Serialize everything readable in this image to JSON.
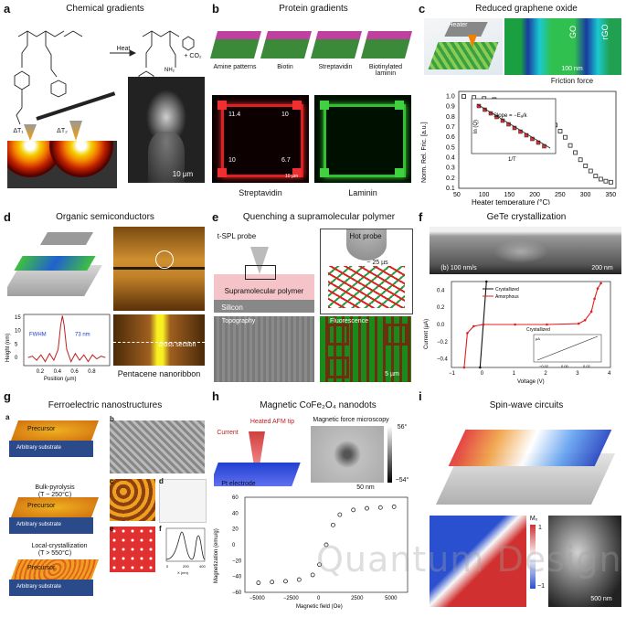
{
  "panels": {
    "a": {
      "label": "a",
      "title": "Chemical gradients",
      "heat": "Heat",
      "co2": "+ CO₂",
      "dt1": "ΔT₁",
      "dt2": "ΔT₂",
      "scale": "10 µm"
    },
    "b": {
      "label": "b",
      "title": "Protein gradients",
      "steps": [
        "Amine patterns",
        "Biotin",
        "Streptavidin",
        "Biotinylated laminin"
      ],
      "vals": [
        "11.4",
        "10",
        "10",
        "6.7"
      ],
      "scale": "10 µm",
      "cap_left": "Streptavidin",
      "cap_right": "Laminin"
    },
    "c": {
      "label": "c",
      "title": "Reduced graphene oxide",
      "heater": "Heater",
      "go": "GO",
      "rgo": "rGO",
      "scale": "100 nm",
      "friction": "Friction force",
      "ylabel": "Norm. Rel. Fric. [a.u.]",
      "xlabel": "Heater temperature (°C)",
      "inset_y": "ln (Q)",
      "inset_x": "1/T",
      "slope": "Slope = −Eₐ/k",
      "yticks": [
        "1.0",
        "0.9",
        "0.8",
        "0.7",
        "0.6",
        "0.5",
        "0.4",
        "0.3",
        "0.2",
        "0.1"
      ],
      "xticks": [
        "50",
        "100",
        "150",
        "200",
        "250",
        "300",
        "350"
      ]
    },
    "d": {
      "label": "d",
      "title": "Organic semiconductors",
      "ylabel": "Height (nm)",
      "xlabel": "Position (µm)",
      "fwhm": "FWHM",
      "fwhm_val": "73 nm",
      "yticks": [
        "15",
        "10",
        "5",
        "0"
      ],
      "xticks": [
        "0.2",
        "0.4",
        "0.6",
        "0.8"
      ],
      "cross": "cross section",
      "cap": "Pentacene nanoribbon"
    },
    "e": {
      "label": "e",
      "title": "Quenching a supramolecular polymer",
      "probe": "t-SPL probe",
      "hot": "Hot probe",
      "tcontact": "t",
      "tcontact_sub": "contact",
      "tcontact_val": "~ 25 µs",
      "polymer": "Supramolecular polymer",
      "silicon": "Silicon",
      "topo": "Topography",
      "fluor": "Fluorescence",
      "scale": "5 µm"
    },
    "f": {
      "label": "f",
      "title": "GeTe crystallization",
      "speed": "(b) 100 nm/s",
      "scale": "200 nm",
      "legend": [
        "Crystallized",
        "Amorphous"
      ],
      "crys_label": "Crystallized",
      "ylabel": "Current (µA)",
      "xlabel": "Voltage (V)",
      "yticks": [
        "0.4",
        "0.2",
        "0.0",
        "−0.2",
        "−0.4"
      ],
      "xticks": [
        "−1",
        "0",
        "1",
        "2",
        "3",
        "4"
      ],
      "inset_y": "µA",
      "inset_yticks": [
        "0.4",
        "0",
        "−0.4"
      ],
      "inset_xticks": [
        "−0.02",
        "0.00",
        "0.02"
      ],
      "inset_x": "V"
    },
    "g": {
      "label": "g",
      "title": "Ferroelectric nanostructures",
      "precursor": "Precursor",
      "substrate": "Arbitrary substrate",
      "step1": "Bulk-pyrolysis",
      "step1_t": "(T ~ 250°C)",
      "step2": "Local-crystallization",
      "step2_t": "(T > 550°C)",
      "sub": [
        "a",
        "b",
        "c",
        "d",
        "e",
        "f"
      ],
      "xlabel": "X (nm)",
      "ylabel": "Z (nm)",
      "xticks": [
        "0",
        "200",
        "400"
      ]
    },
    "h": {
      "label": "h",
      "title": "Magnetic CoFe₂O₄ nanodots",
      "mfm": "Magnetic force microscopy",
      "cbar_top": "56°",
      "cbar_bot": "−54°",
      "scale": "50 nm",
      "afm": "Heated AFM tip",
      "current": "Current",
      "pt": "Pt electrode",
      "ylabel": "Magnetization (emu/g)",
      "xlabel": "Magnetic field (Oe)",
      "yticks": [
        "60",
        "40",
        "20",
        "0",
        "−20",
        "−40",
        "−60"
      ],
      "xticks": [
        "−5000",
        "−2500",
        "0",
        "2500",
        "5000"
      ]
    },
    "i": {
      "label": "i",
      "title": "Spin-wave circuits",
      "mx": "Mₓ",
      "cb_top": "1",
      "cb_bot": "−1",
      "scale": "500 nm"
    }
  },
  "watermark": "Quantum Design",
  "chart_data": [
    {
      "type": "scatter",
      "panel": "c",
      "xlabel": "Heater temperature (°C)",
      "ylabel": "Norm. Rel. Fric. [a.u.]",
      "xlim": [
        50,
        360
      ],
      "ylim": [
        0.1,
        1.05
      ],
      "x": [
        60,
        80,
        100,
        120,
        140,
        160,
        180,
        200,
        220,
        230,
        240,
        250,
        260,
        270,
        280,
        290,
        300,
        310,
        320,
        330,
        340,
        350
      ],
      "y": [
        1.0,
        0.99,
        0.98,
        0.97,
        0.95,
        0.93,
        0.9,
        0.86,
        0.82,
        0.78,
        0.72,
        0.66,
        0.6,
        0.52,
        0.45,
        0.38,
        0.32,
        0.27,
        0.22,
        0.19,
        0.17,
        0.16
      ]
    },
    {
      "type": "line",
      "panel": "d",
      "xlabel": "Position (µm)",
      "ylabel": "Height (nm)",
      "xlim": [
        0,
        1
      ],
      "ylim": [
        -3,
        16
      ],
      "x": [
        0.05,
        0.1,
        0.15,
        0.2,
        0.25,
        0.3,
        0.35,
        0.4,
        0.43,
        0.45,
        0.47,
        0.5,
        0.55,
        0.6,
        0.65,
        0.7,
        0.75,
        0.8,
        0.85,
        0.9,
        0.95
      ],
      "y": [
        0,
        0.5,
        -1,
        1,
        -1.5,
        1.5,
        -1,
        3,
        12,
        15.5,
        12,
        3,
        -1.5,
        1.5,
        -1,
        1,
        -1.5,
        1,
        -0.5,
        0.5,
        0
      ]
    },
    {
      "type": "line",
      "panel": "f",
      "xlabel": "Voltage (V)",
      "ylabel": "Current (µA)",
      "xlim": [
        -1,
        4
      ],
      "ylim": [
        -0.5,
        0.5
      ],
      "series": [
        {
          "name": "Crystallized",
          "x": [
            -0.1,
            0,
            0.1
          ],
          "y": [
            -0.5,
            0,
            0.5
          ]
        },
        {
          "name": "Amorphous",
          "x": [
            -0.6,
            -0.5,
            -0.3,
            0,
            1,
            2,
            3,
            3.2,
            3.4,
            3.5,
            3.6,
            3.7
          ],
          "y": [
            -0.5,
            -0.1,
            -0.02,
            0,
            0,
            0,
            0.01,
            0.05,
            0.15,
            0.3,
            0.42,
            0.48
          ]
        }
      ]
    },
    {
      "type": "scatter",
      "panel": "h",
      "xlabel": "Magnetic field (Oe)",
      "ylabel": "Magnetization (emu/g)",
      "xlim": [
        -6000,
        6000
      ],
      "ylim": [
        -60,
        60
      ],
      "x": [
        -5000,
        -4000,
        -3000,
        -2000,
        -1000,
        -500,
        0,
        500,
        1000,
        2000,
        3000,
        4000,
        5000
      ],
      "y": [
        -48,
        -47,
        -46,
        -44,
        -38,
        -25,
        0,
        25,
        38,
        44,
        46,
        47,
        48
      ]
    }
  ]
}
